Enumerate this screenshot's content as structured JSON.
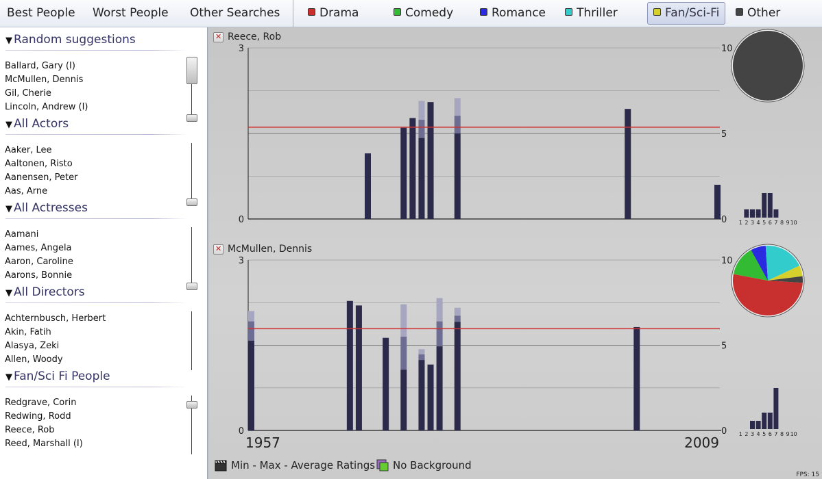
{
  "topbar": {
    "buttons": [
      "Best People",
      "Worst People",
      "Other Searches"
    ],
    "genres": [
      {
        "label": "Drama",
        "color": "#c83030"
      },
      {
        "label": "Comedy",
        "color": "#33bb33"
      },
      {
        "label": "Romance",
        "color": "#2a2ae0"
      },
      {
        "label": "Thriller",
        "color": "#33cccc"
      },
      {
        "label": "Fan/Sci-Fi",
        "color": "#d6d02c"
      },
      {
        "label": "Other",
        "color": "#444444"
      }
    ],
    "active_genre": "Fan/Sci-Fi"
  },
  "sidebar": {
    "sections": [
      {
        "title": "Random suggestions",
        "items": [
          "Ballard, Gary (I)",
          "McMullen, Dennis",
          "Gil, Cherie",
          "Lincoln, Andrew (I)"
        ]
      },
      {
        "title": "All Actors",
        "items": [
          "Aaker, Lee",
          "Aaltonen, Risto",
          "Aanensen, Peter",
          "Aas, Arne"
        ]
      },
      {
        "title": "All Actresses",
        "items": [
          "Aamani",
          "Aames, Angela",
          "Aaron, Caroline",
          "Aarons, Bonnie"
        ]
      },
      {
        "title": "All Directors",
        "items": [
          "Achternbusch, Herbert",
          "Akin, Fatih",
          "Alasya, Zeki",
          "Allen, Woody"
        ]
      },
      {
        "title": "Fan/Sci Fi People",
        "items": [
          "Redgrave, Corin",
          "Redwing, Rodd",
          "Reece, Rob",
          "Reed, Marshall (I)"
        ]
      }
    ]
  },
  "main": {
    "x_start_label": "1957",
    "x_end_label": "2009",
    "bottom_controls": [
      "Min - Max - Average Ratings",
      "No Background"
    ],
    "fps": "FPS: 15"
  },
  "chart_data": [
    {
      "type": "bar",
      "title": "Reece, Rob",
      "xlim": [
        1957,
        2009
      ],
      "left_axis": {
        "ticks": [
          "3",
          "0"
        ],
        "ylim": [
          0,
          3
        ]
      },
      "right_axis": {
        "ticks": [
          "10",
          "5",
          "0"
        ],
        "ylim": [
          0,
          10
        ]
      },
      "average_line": 1.61,
      "bars": [
        {
          "x": 1970,
          "min": 1.15,
          "avg": 1.15,
          "max": 1.15
        },
        {
          "x": 1974,
          "min": 1.6,
          "avg": 1.6,
          "max": 1.6
        },
        {
          "x": 1975,
          "min": 1.77,
          "avg": 1.77,
          "max": 1.77
        },
        {
          "x": 1976,
          "min": 1.42,
          "avg": 1.74,
          "max": 2.07
        },
        {
          "x": 1977,
          "min": 2.05,
          "avg": 2.05,
          "max": 2.05
        },
        {
          "x": 1980,
          "min": 1.5,
          "avg": 1.81,
          "max": 2.12
        },
        {
          "x": 1999,
          "min": 1.93,
          "avg": 1.93,
          "max": 1.93
        },
        {
          "x": 2009,
          "min": 0.6,
          "avg": 0.6,
          "max": 0.6
        }
      ],
      "pie": [
        {
          "genre": "Other",
          "value": 1
        }
      ],
      "histogram": {
        "labels": [
          "1",
          "2",
          "3",
          "4",
          "5",
          "6",
          "7",
          "8",
          "9",
          "10"
        ],
        "values": [
          0,
          1,
          1,
          1,
          3,
          3,
          1,
          0,
          0,
          0
        ]
      }
    },
    {
      "type": "bar",
      "title": "McMullen, Dennis",
      "xlim": [
        1957,
        2009
      ],
      "left_axis": {
        "ticks": [
          "3",
          "0"
        ],
        "ylim": [
          0,
          3
        ]
      },
      "right_axis": {
        "ticks": [
          "10",
          "5",
          "0"
        ],
        "ylim": [
          0,
          10
        ]
      },
      "average_line": 1.79,
      "bars": [
        {
          "x": 1957,
          "min": 1.58,
          "avg": 1.92,
          "max": 2.1
        },
        {
          "x": 1968,
          "min": 2.28,
          "avg": 2.28,
          "max": 2.28
        },
        {
          "x": 1969,
          "min": 2.2,
          "avg": 2.2,
          "max": 2.2
        },
        {
          "x": 1972,
          "min": 1.63,
          "avg": 1.63,
          "max": 1.63
        },
        {
          "x": 1974,
          "min": 1.07,
          "avg": 1.65,
          "max": 2.22
        },
        {
          "x": 1976,
          "min": 1.24,
          "avg": 1.34,
          "max": 1.43
        },
        {
          "x": 1977,
          "min": 1.16,
          "avg": 1.16,
          "max": 1.16
        },
        {
          "x": 1978,
          "min": 1.48,
          "avg": 1.92,
          "max": 2.33
        },
        {
          "x": 1980,
          "min": 1.91,
          "avg": 2.02,
          "max": 2.16
        },
        {
          "x": 2000,
          "min": 1.82,
          "avg": 1.82,
          "max": 1.82
        }
      ],
      "pie": [
        {
          "genre": "Drama",
          "value": 52
        },
        {
          "genre": "Comedy",
          "value": 14
        },
        {
          "genre": "Romance",
          "value": 7
        },
        {
          "genre": "Thriller",
          "value": 19
        },
        {
          "genre": "Fan/Sci-Fi",
          "value": 5
        },
        {
          "genre": "Other",
          "value": 3
        }
      ],
      "histogram": {
        "labels": [
          "1",
          "2",
          "3",
          "4",
          "5",
          "6",
          "7",
          "8",
          "9",
          "10"
        ],
        "values": [
          0,
          0,
          1,
          1,
          2,
          2,
          5,
          0,
          0,
          0
        ]
      }
    }
  ]
}
